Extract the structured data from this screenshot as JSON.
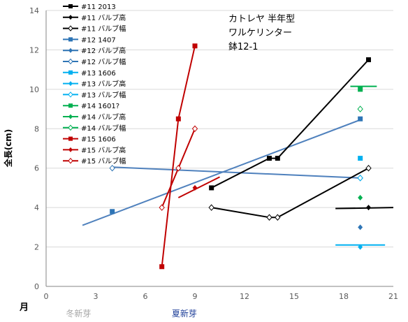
{
  "chart_data": {
    "type": "scatter",
    "title_lines": [
      "カトレヤ 半年型",
      "ワルケリンター",
      "鉢12-1"
    ],
    "xlabel": "月",
    "ylabel": "全長(cm)",
    "xlim": [
      0,
      21
    ],
    "ylim": [
      0,
      14
    ],
    "xticks": [
      0,
      3,
      6,
      9,
      12,
      15,
      18,
      21
    ],
    "yticks": [
      0,
      2,
      4,
      6,
      8,
      10,
      12,
      14
    ],
    "x_annotations": [
      {
        "text": "冬新芽",
        "x": 1.2,
        "color": "#a6a6a6"
      },
      {
        "text": "夏新芽",
        "x": 7.6,
        "color": "#1f3f99"
      }
    ],
    "series": [
      {
        "name": "#11 2013",
        "color": "#000000",
        "marker": "square",
        "line": true,
        "points": [
          [
            10,
            5.0
          ],
          [
            13.5,
            6.5
          ],
          [
            14,
            6.5
          ],
          [
            19.5,
            11.5
          ]
        ]
      },
      {
        "name": "#11 バルブ高",
        "color": "#000000",
        "marker": "diamond",
        "line": false,
        "points": [
          [
            19.5,
            4.0
          ]
        ]
      },
      {
        "name": "#11 バルブ幅",
        "color": "#000000",
        "marker": "open-diamond",
        "line": true,
        "points": [
          [
            10,
            4.0
          ],
          [
            13.5,
            3.5
          ],
          [
            14,
            3.5
          ],
          [
            19.5,
            6.0
          ]
        ]
      },
      {
        "name": "#12 1407",
        "color": "#2e75b6",
        "marker": "square",
        "line": false,
        "points": [
          [
            4,
            3.8
          ],
          [
            19,
            8.5
          ]
        ]
      },
      {
        "name": "#12 バルブ高",
        "color": "#2e75b6",
        "marker": "diamond",
        "line": false,
        "points": [
          [
            19,
            3.0
          ]
        ]
      },
      {
        "name": "#12 バルブ幅",
        "color": "#2e75b6",
        "marker": "open-diamond",
        "line": false,
        "points": [
          [
            4,
            6.0
          ],
          [
            19,
            5.5
          ]
        ]
      },
      {
        "name": "#13 1606",
        "color": "#00b0f0",
        "marker": "square",
        "line": false,
        "points": [
          [
            19,
            6.5
          ]
        ]
      },
      {
        "name": "#13 バルブ高",
        "color": "#00b0f0",
        "marker": "diamond",
        "line": false,
        "points": [
          [
            19,
            2.0
          ]
        ]
      },
      {
        "name": "#13 バルブ幅",
        "color": "#00b0f0",
        "marker": "open-diamond",
        "line": false,
        "points": [
          [
            19,
            5.5
          ]
        ]
      },
      {
        "name": "#14 1601?",
        "color": "#00b050",
        "marker": "square",
        "line": false,
        "points": [
          [
            19,
            10.0
          ]
        ]
      },
      {
        "name": "#14 バルブ高",
        "color": "#00b050",
        "marker": "diamond",
        "line": false,
        "points": [
          [
            19,
            4.5
          ]
        ]
      },
      {
        "name": "#14 バルブ幅",
        "color": "#00b050",
        "marker": "open-diamond",
        "line": false,
        "points": [
          [
            19,
            9.0
          ]
        ]
      },
      {
        "name": "#15 1606",
        "color": "#c00000",
        "marker": "square",
        "line": true,
        "points": [
          [
            7,
            1.0
          ],
          [
            8,
            8.5
          ],
          [
            9,
            12.2
          ]
        ]
      },
      {
        "name": "#15 バルブ高",
        "color": "#c00000",
        "marker": "diamond",
        "line": false,
        "points": [
          [
            9,
            5.0
          ]
        ]
      },
      {
        "name": "#15 バルブ幅",
        "color": "#c00000",
        "marker": "open-diamond",
        "line": true,
        "points": [
          [
            7,
            4.0
          ],
          [
            8,
            6.0
          ],
          [
            9,
            8.0
          ]
        ]
      }
    ],
    "trend_lines": [
      {
        "color": "#4f81bd",
        "from": [
          2.2,
          3.1
        ],
        "to": [
          19,
          8.45
        ]
      },
      {
        "color": "#4f81bd",
        "from": [
          4,
          6.05
        ],
        "to": [
          19,
          5.5
        ]
      },
      {
        "color": "#c00000",
        "from": [
          8,
          4.5
        ],
        "to": [
          10.5,
          5.55
        ]
      },
      {
        "color": "#00b050",
        "from": [
          18.4,
          10.15
        ],
        "to": [
          20,
          10.15
        ]
      },
      {
        "color": "#000000",
        "from": [
          17.5,
          3.95
        ],
        "to": [
          21,
          4.0
        ]
      },
      {
        "color": "#00b0f0",
        "from": [
          17.5,
          2.1
        ],
        "to": [
          20.5,
          2.1
        ]
      }
    ]
  }
}
